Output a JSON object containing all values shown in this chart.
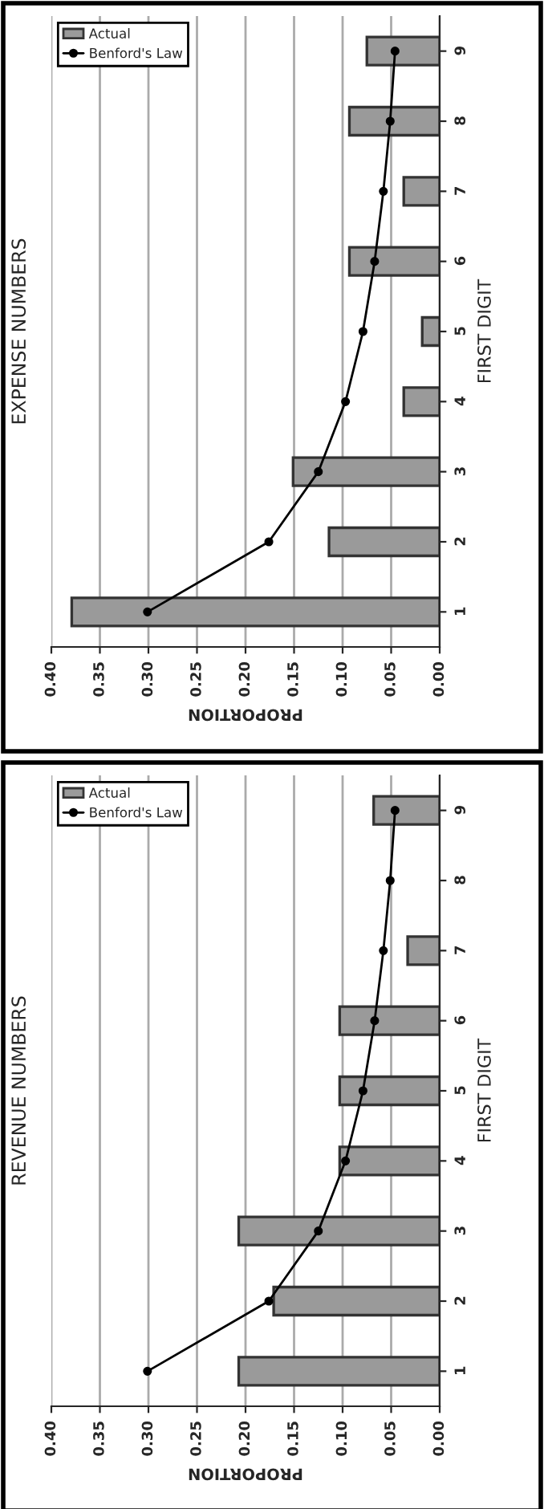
{
  "chart_data": [
    {
      "type": "bar",
      "orientation": "horizontal",
      "title": "EXPENSE NUMBERS",
      "xlabel": "PROPORTION",
      "ylabel": "FIRST DIGIT",
      "categories": [
        "9",
        "8",
        "7",
        "6",
        "5",
        "4",
        "3",
        "2",
        "1"
      ],
      "series": [
        {
          "name": "Actual",
          "type": "bar",
          "color": "#9a9a9a",
          "values": [
            0.075,
            0.093,
            0.037,
            0.093,
            0.018,
            0.037,
            0.151,
            0.114,
            0.379
          ]
        },
        {
          "name": "Benford's Law",
          "type": "line",
          "color": "#000000",
          "values": [
            0.046,
            0.051,
            0.058,
            0.067,
            0.079,
            0.097,
            0.125,
            0.176,
            0.301
          ]
        }
      ],
      "xlim": [
        0.4,
        0.0
      ],
      "xticks": [
        {
          "value": 0.4,
          "label": "0.40"
        },
        {
          "value": 0.35,
          "label": "0.35"
        },
        {
          "value": 0.3,
          "label": "0.30"
        },
        {
          "value": 0.25,
          "label": "0.25"
        },
        {
          "value": 0.2,
          "label": "0.20"
        },
        {
          "value": 0.15,
          "label": "0.15"
        },
        {
          "value": 0.1,
          "label": "0.10"
        },
        {
          "value": 0.05,
          "label": "0.05"
        },
        {
          "value": 0.0,
          "label": "0.00"
        }
      ],
      "grid": "x",
      "legend": "upper left",
      "marker": "circle"
    },
    {
      "type": "bar",
      "orientation": "horizontal",
      "title": "REVENUE NUMBERS",
      "xlabel": "PROPORTION",
      "ylabel": "FIRST DIGIT",
      "categories": [
        "9",
        "8",
        "7",
        "6",
        "5",
        "4",
        "3",
        "2",
        "1"
      ],
      "series": [
        {
          "name": "Actual",
          "type": "bar",
          "color": "#9a9a9a",
          "values": [
            0.068,
            null,
            0.033,
            0.103,
            0.103,
            0.103,
            0.207,
            0.171,
            0.207
          ]
        },
        {
          "name": "Benford's Law",
          "type": "line",
          "color": "#000000",
          "values": [
            0.046,
            0.051,
            0.058,
            0.067,
            0.079,
            0.097,
            0.125,
            0.176,
            0.301
          ]
        }
      ],
      "xlim": [
        0.4,
        0.0
      ],
      "xticks": [
        {
          "value": 0.4,
          "label": "0.40"
        },
        {
          "value": 0.35,
          "label": "0.35"
        },
        {
          "value": 0.3,
          "label": "0.30"
        },
        {
          "value": 0.25,
          "label": "0.25"
        },
        {
          "value": 0.2,
          "label": "0.20"
        },
        {
          "value": 0.15,
          "label": "0.15"
        },
        {
          "value": 0.1,
          "label": "0.10"
        },
        {
          "value": 0.05,
          "label": "0.05"
        },
        {
          "value": 0.0,
          "label": "0.00"
        }
      ],
      "grid": "x",
      "legend": "upper left",
      "marker": "circle"
    }
  ]
}
